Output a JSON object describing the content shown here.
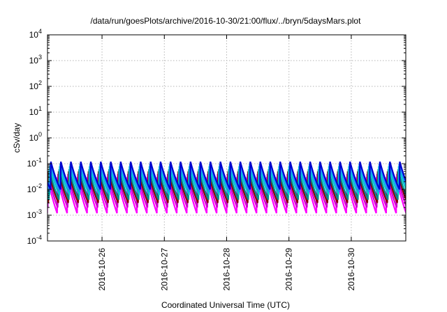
{
  "chart_data": {
    "type": "line",
    "title": "/data/run/goesPlots/archive/2016-10-30/21:00/flux/../bryn/5daysMars.plot",
    "xlabel": "Coordinated Universal Time (UTC)",
    "ylabel": "cSv/day",
    "y_scale": "log",
    "ylim": [
      0.0001,
      10000
    ],
    "xlim": [
      "2016-10-25T03:00",
      "2016-10-30T21:00"
    ],
    "grid": true,
    "legend": "none",
    "x_ticks": [
      "2016-10-26",
      "2016-10-27",
      "2016-10-28",
      "2016-10-29",
      "2016-10-30"
    ],
    "y_ticks": [
      {
        "base": "10",
        "exp": "-4"
      },
      {
        "base": "10",
        "exp": "-3"
      },
      {
        "base": "10",
        "exp": "-2"
      },
      {
        "base": "10",
        "exp": "-1"
      },
      {
        "base": "10",
        "exp": "0"
      },
      {
        "base": "10",
        "exp": "1"
      },
      {
        "base": "10",
        "exp": "2"
      },
      {
        "base": "10",
        "exp": "3"
      },
      {
        "base": "10",
        "exp": "4"
      }
    ],
    "pattern_note": "sawtooth with ~0.16 day period per series",
    "series": [
      {
        "color": "#ff00ff",
        "peak": 0.03,
        "trough": 0.0012
      },
      {
        "color": "#cc00cc",
        "peak": 0.04,
        "trough": 0.002
      },
      {
        "color": "#8b0000",
        "peak": 0.05,
        "trough": 0.003
      },
      {
        "color": "#008b8b",
        "peak": 0.06,
        "trough": 0.004
      },
      {
        "color": "#00cccc",
        "peak": 0.08,
        "trough": 0.006
      },
      {
        "color": "#1e90ff",
        "peak": 0.1,
        "trough": 0.008
      },
      {
        "color": "#0000cd",
        "peak": 0.12,
        "trough": 0.01
      }
    ],
    "period_days": 0.16
  }
}
